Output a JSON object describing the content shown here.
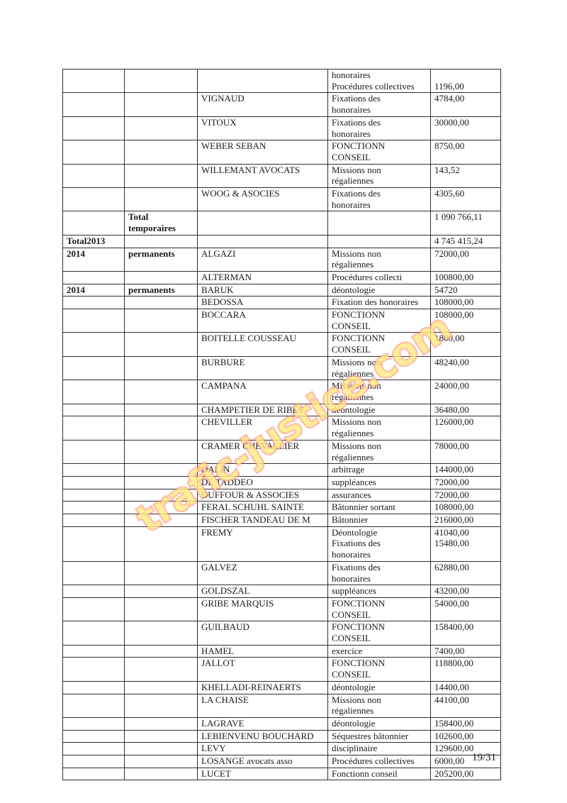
{
  "page": {
    "number_label": "19/31"
  },
  "watermark": {
    "text": "trafic-justice.com",
    "fill_color": "#ffe982",
    "outline_color": "#ff7373"
  },
  "table": {
    "rows": [
      {
        "year": "",
        "category": "",
        "name": "",
        "mission": [
          "honoraires",
          "Procédures collectives"
        ],
        "amount": [
          "",
          "1196,00"
        ]
      },
      {
        "name": "VIGNAUD",
        "mission": [
          "Fixations des",
          "honoraires"
        ],
        "amount": [
          "4784,00"
        ]
      },
      {
        "name": "VITOUX",
        "mission": [
          "Fixations des",
          "honoraires"
        ],
        "amount": [
          "30000,00"
        ]
      },
      {
        "name": "WEBER SEBAN",
        "mission": [
          "FONCTIONN",
          "CONSEIL"
        ],
        "amount": [
          "8750,00"
        ]
      },
      {
        "name": "WILLEMANT AVOCATS",
        "mission": [
          "Missions non",
          "régaliennes"
        ],
        "amount": [
          "143,52"
        ]
      },
      {
        "name": "WOOG & ASOCIES",
        "mission": [
          "Fixations des",
          "honoraires"
        ],
        "amount": [
          "4305,60"
        ]
      },
      {
        "category": "Total temporaires",
        "amount": [
          "1 090 766,11"
        ]
      },
      {
        "year": "Total2013",
        "amount": [
          "4 745 415,24"
        ]
      },
      {
        "year": "2014",
        "category": "permanents",
        "name": "ALGAZI",
        "mission": [
          "Missions non",
          "régaliennes"
        ],
        "amount": [
          "72000,00"
        ]
      },
      {
        "name": "ALTERMAN",
        "mission": [
          "Procédures collecti"
        ],
        "amount": [
          "100800,00"
        ]
      },
      {
        "year": "2014",
        "category": "permanents",
        "name": "BARUK",
        "mission": [
          "déontologie"
        ],
        "amount": [
          "54720"
        ]
      },
      {
        "name": "BEDOSSA",
        "mission": [
          "Fixation des honoraires"
        ],
        "amount": [
          "108000,00"
        ]
      },
      {
        "name": "BOCCARA",
        "mission": [
          "FONCTIONN",
          "CONSEIL"
        ],
        "amount": [
          "108000,00"
        ]
      },
      {
        "name": "BOITELLE COUSSEAU",
        "mission": [
          "FONCTIONN",
          "CONSEIL"
        ],
        "amount": [
          "1800,00"
        ]
      },
      {
        "name": "BURBURE",
        "mission": [
          "Missions non",
          "régaliennes"
        ],
        "amount": [
          "48240,00"
        ]
      },
      {
        "name": "CAMPANA",
        "mission": [
          "Missions non",
          "régaliennes"
        ],
        "amount": [
          "24000,00"
        ]
      },
      {
        "name": "CHAMPETIER DE RIBES",
        "mission": [
          "déontologie"
        ],
        "amount": [
          "36480,00"
        ]
      },
      {
        "name": "CHEVILLER",
        "mission": [
          "Missions non",
          "régaliennes"
        ],
        "amount": [
          "126000,00"
        ]
      },
      {
        "name": "CRAMER CHEVALLIER",
        "mission": [
          "Missions non",
          "régaliennes"
        ],
        "amount": [
          "78000,00"
        ]
      },
      {
        "name": "DALIN",
        "mission": [
          "arbitrage"
        ],
        "amount": [
          "144000,00"
        ]
      },
      {
        "name": "DE TADDEO",
        "mission": [
          "suppléances"
        ],
        "amount": [
          "72000,00"
        ]
      },
      {
        "name": "DUFFOUR & ASSOCIES",
        "mission": [
          "assurances"
        ],
        "amount": [
          "72000,00"
        ]
      },
      {
        "name": "FERAL SCHUHL SAINTE",
        "mission": [
          "Bâtonnier sortant"
        ],
        "amount": [
          "108000,00"
        ]
      },
      {
        "name": "FISCHER TANDEAU DE M",
        "mission": [
          "Bâtonnier"
        ],
        "amount": [
          "216000,00"
        ]
      },
      {
        "name": "FREMY",
        "mission": [
          "Déontologie",
          "Fixations des",
          "honoraires"
        ],
        "amount": [
          "41040,00",
          "15480,00"
        ]
      },
      {
        "name": "GALVEZ",
        "mission": [
          "Fixations des",
          "honoraires"
        ],
        "amount": [
          "62880,00"
        ]
      },
      {
        "name": "GOLDSZAL",
        "mission": [
          "suppléances"
        ],
        "amount": [
          "43200,00"
        ]
      },
      {
        "name": "GRIBE MARQUIS",
        "mission": [
          "FONCTIONN",
          "CONSEIL"
        ],
        "amount": [
          "54000,00"
        ]
      },
      {
        "name": "GUILBAUD",
        "mission": [
          "FONCTIONN",
          "CONSEIL"
        ],
        "amount": [
          "158400,00"
        ]
      },
      {
        "name": "HAMEL",
        "mission": [
          "exercice"
        ],
        "amount": [
          "7400,00"
        ]
      },
      {
        "name": "JALLOT",
        "mission": [
          "FONCTIONN",
          "CONSEIL"
        ],
        "amount": [
          "118800,00"
        ]
      },
      {
        "name": "KHELLADI-REINAERTS",
        "mission": [
          "déontologie"
        ],
        "amount": [
          "14400,00"
        ]
      },
      {
        "name": "LA CHAISE",
        "mission": [
          "Missions non",
          "régaliennes"
        ],
        "amount": [
          "44100,00"
        ]
      },
      {
        "name": "LAGRAVE",
        "mission": [
          "déontologie"
        ],
        "amount": [
          "158400,00"
        ]
      },
      {
        "name": "LEBIENVENU BOUCHARD",
        "mission": [
          "Séquestres bâtonnier"
        ],
        "amount": [
          "102600,00"
        ]
      },
      {
        "name": "LEVY",
        "mission": [
          "disciplinaire"
        ],
        "amount": [
          "129600,00"
        ]
      },
      {
        "name": "LOSANGE avocats asso",
        "mission": [
          "Procédures collectives"
        ],
        "amount": [
          "6000,00"
        ]
      },
      {
        "name": "LUCET",
        "mission": [
          "Fonctionn conseil"
        ],
        "amount": [
          "205200,00"
        ]
      }
    ]
  }
}
